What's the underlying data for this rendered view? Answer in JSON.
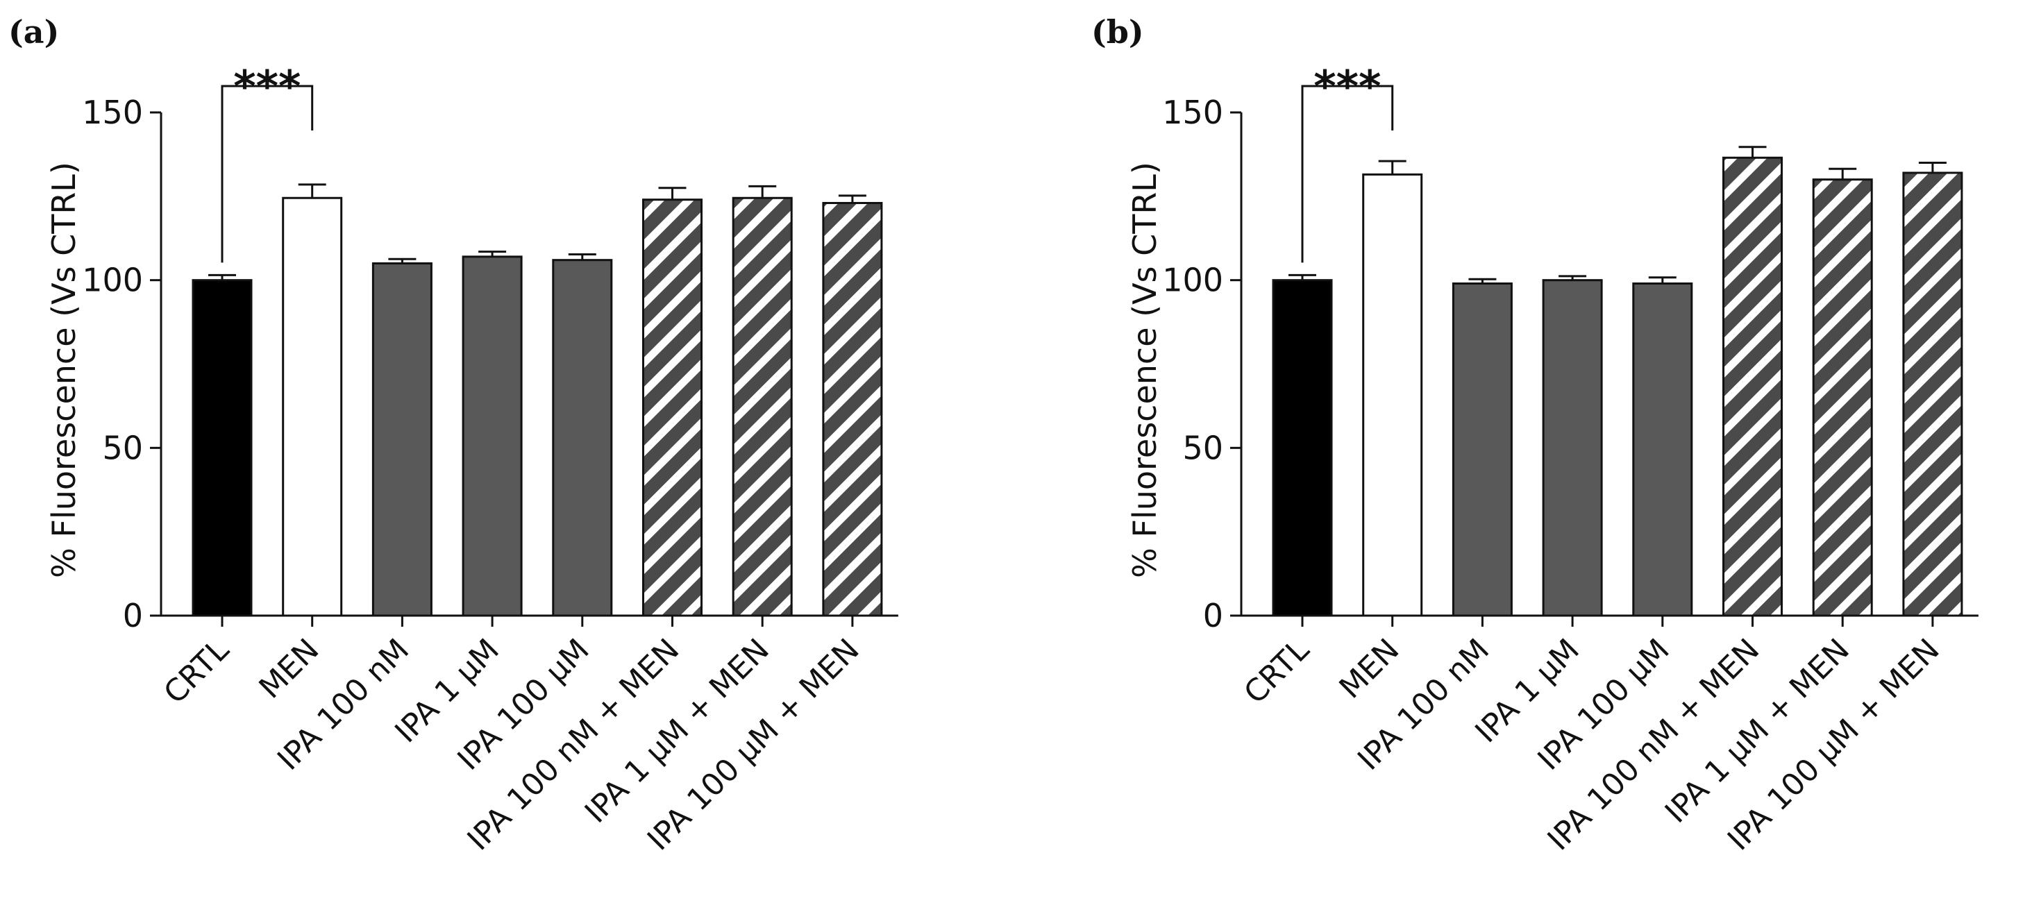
{
  "colors": {
    "control": "#000000",
    "men": "#ffffff",
    "ipa": "#595959",
    "hatch_bg": "#4a4a4a",
    "hatch_line": "#ffffff",
    "axis": "#111111"
  },
  "chart_data": [
    {
      "type": "bar",
      "panel": "(a)",
      "title": "",
      "xlabel": "",
      "ylabel": "% Fluorescence (Vs CTRL)",
      "ylim": [
        0,
        150
      ],
      "yticks": [
        "0",
        "50",
        "100",
        "150"
      ],
      "categories": [
        "CRTL",
        "MEN",
        "IPA 100 nM",
        "IPA 1 μM",
        "IPA 100 μM",
        "IPA 100 nM + MEN",
        "IPA 1 μM + MEN",
        "IPA 100 μM + MEN"
      ],
      "styles": [
        "control",
        "men",
        "ipa",
        "ipa",
        "ipa",
        "hatch",
        "hatch",
        "hatch"
      ],
      "values": [
        100,
        124.5,
        105,
        107,
        106,
        124,
        124.5,
        123
      ],
      "errors": [
        1.5,
        4,
        1.3,
        1.5,
        1.7,
        3.5,
        3.5,
        2.2
      ],
      "significance": {
        "from": 0,
        "to": 1,
        "label": "***"
      }
    },
    {
      "type": "bar",
      "panel": "(b)",
      "title": "",
      "xlabel": "",
      "ylabel": "% Fluorescence (Vs CTRL)",
      "ylim": [
        0,
        150
      ],
      "yticks": [
        "0",
        "50",
        "100",
        "150"
      ],
      "categories": [
        "CRTL",
        "MEN",
        "IPA 100 nM",
        "IPA 1 μM",
        "IPA 100 μM",
        "IPA 100 nM + MEN",
        "IPA 1 μM + MEN",
        "IPA 100 μM + MEN"
      ],
      "styles": [
        "control",
        "men",
        "ipa",
        "ipa",
        "ipa",
        "hatch",
        "hatch",
        "hatch"
      ],
      "values": [
        100,
        131.5,
        99,
        100,
        99,
        136.5,
        130,
        132
      ],
      "errors": [
        1.5,
        4,
        1.3,
        1.2,
        1.8,
        3.2,
        3.2,
        3
      ],
      "significance": {
        "from": 0,
        "to": 1,
        "label": "***"
      }
    }
  ]
}
